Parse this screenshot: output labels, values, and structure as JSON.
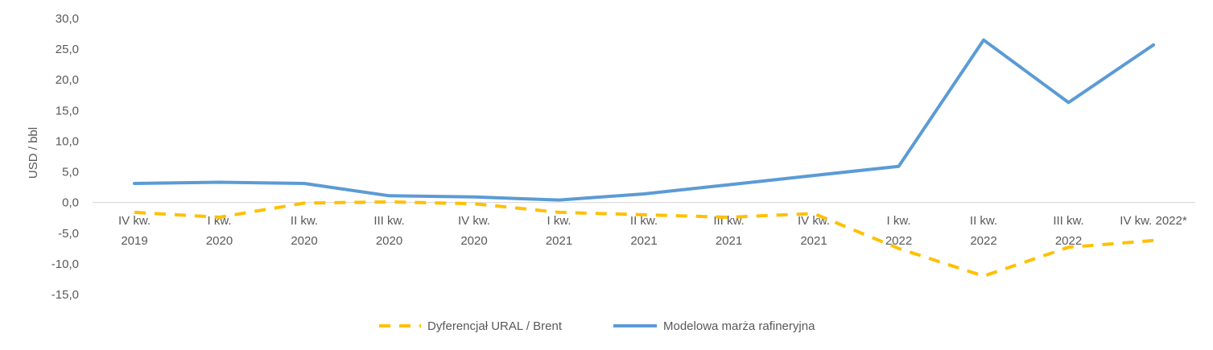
{
  "chart_data": {
    "type": "line",
    "title": "",
    "xlabel": "",
    "ylabel": "USD / bbl",
    "ylim": [
      -15,
      30
    ],
    "yticks": [
      30,
      25,
      20,
      15,
      10,
      5,
      0,
      -5,
      -10,
      -15
    ],
    "ytick_labels": [
      "30,0",
      "25,0",
      "20,0",
      "15,0",
      "10,0",
      "5,0",
      "0,0",
      "-5,0",
      "-10,0",
      "-15,0"
    ],
    "categories": [
      [
        "IV kw.",
        "2019"
      ],
      [
        "I kw.",
        "2020"
      ],
      [
        "II kw.",
        "2020"
      ],
      [
        "III kw.",
        "2020"
      ],
      [
        "IV kw.",
        "2020"
      ],
      [
        "I kw.",
        "2021"
      ],
      [
        "II kw.",
        "2021"
      ],
      [
        "III kw.",
        "2021"
      ],
      [
        "IV kw.",
        "2021"
      ],
      [
        "I kw.",
        "2022"
      ],
      [
        "II kw.",
        "2022"
      ],
      [
        "III kw.",
        "2022"
      ],
      [
        "IV kw. 2022*"
      ]
    ],
    "series": [
      {
        "name": "Dyferencjał URAL / Brent",
        "color": "#FFC000",
        "style": "dashed",
        "values": [
          -1.6,
          -2.4,
          -0.1,
          0.1,
          -0.2,
          -1.6,
          -2.0,
          -2.4,
          -1.8,
          -7.5,
          -12.0,
          -7.3,
          -6.2
        ]
      },
      {
        "name": "Modelowa marża rafineryjna",
        "color": "#5B9BD5",
        "style": "solid",
        "values": [
          3.1,
          3.3,
          3.1,
          1.1,
          0.9,
          0.4,
          1.4,
          2.9,
          4.4,
          5.9,
          26.5,
          16.3,
          25.7
        ]
      }
    ],
    "grid": false,
    "legend": "bottom"
  }
}
